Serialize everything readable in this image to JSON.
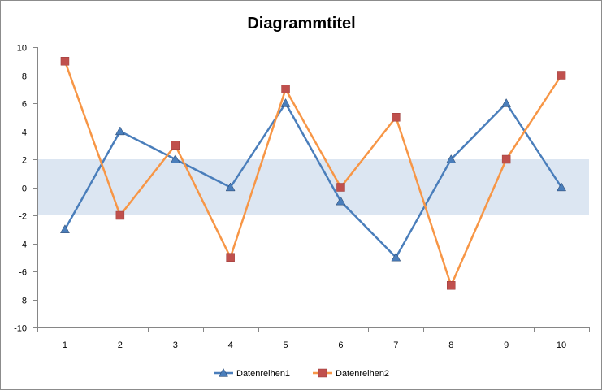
{
  "chart_data": {
    "type": "line",
    "title": "Diagrammtitel",
    "xlabel": "",
    "ylabel": "",
    "x": [
      1,
      2,
      3,
      4,
      5,
      6,
      7,
      8,
      9,
      10
    ],
    "x_tick_labels": [
      "1",
      "2",
      "3",
      "4",
      "5",
      "6",
      "7",
      "8",
      "9",
      "10"
    ],
    "ylim": [
      -10,
      10
    ],
    "y_ticks": [
      -10,
      -8,
      -6,
      -4,
      -2,
      0,
      2,
      4,
      6,
      8,
      10
    ],
    "y_tick_labels": [
      "-10",
      "-8",
      "-6",
      "-4",
      "-2",
      "0",
      "2",
      "4",
      "6",
      "8",
      "10"
    ],
    "grid": false,
    "band": {
      "from": -2,
      "to": 2,
      "color": "#dce6f2"
    },
    "legend_position": "bottom",
    "series": [
      {
        "name": "Datenreihen1",
        "values": [
          -3,
          4,
          2,
          0,
          6,
          -1,
          -5,
          2,
          6,
          0
        ],
        "color": "#4a7ebb",
        "marker": "triangle"
      },
      {
        "name": "Datenreihen2",
        "values": [
          9,
          -2,
          3,
          -5,
          7,
          0,
          5,
          -7,
          2,
          8
        ],
        "color": "#f79646",
        "marker_color": "#c0504d",
        "marker": "square"
      }
    ]
  }
}
